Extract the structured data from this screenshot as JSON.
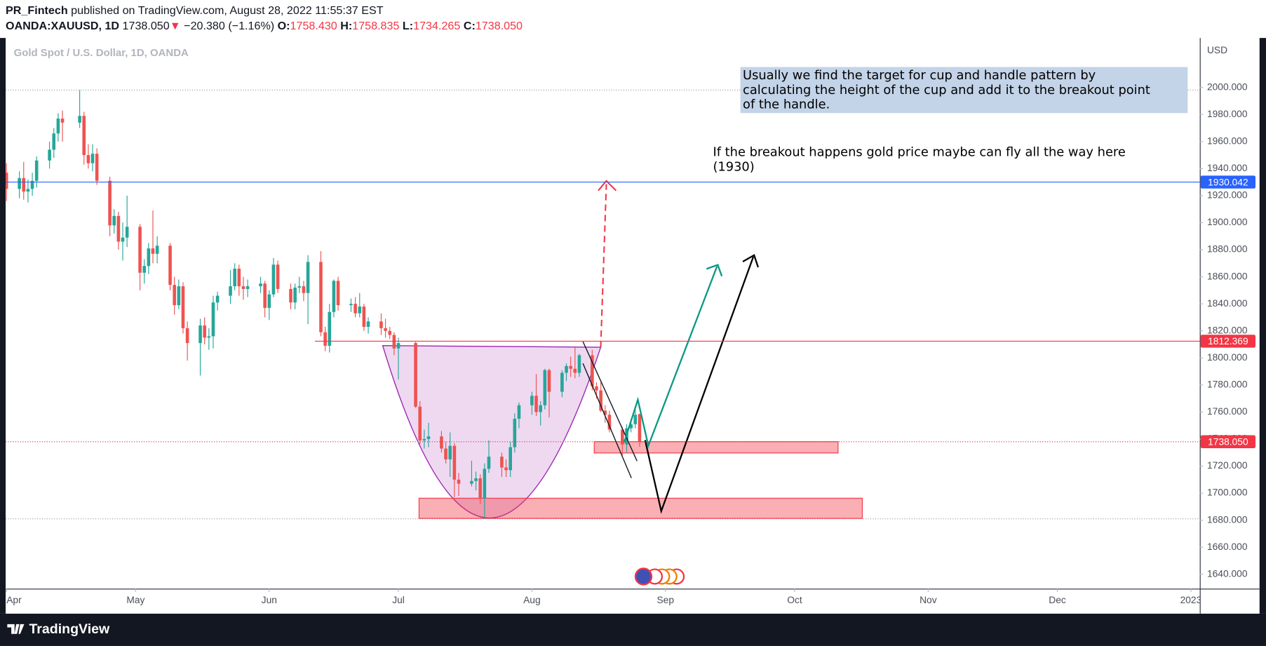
{
  "chart_data": {
    "type": "candlestick",
    "header": {
      "author": "PR_Fintech",
      "published": "published on TradingView.com, August 28, 2022 11:55:37 EST",
      "symbol": "OANDA:XAUUSD, 1D",
      "last": "1738.050",
      "arrow": "▼",
      "change": "−20.380 (−1.16%)",
      "ohlc": [
        [
          "O:",
          "1758.430"
        ],
        [
          "H:",
          "1758.835"
        ],
        [
          "L:",
          "1734.265"
        ],
        [
          "C:",
          "1738.050"
        ]
      ]
    },
    "title": "Gold Spot / U.S. Dollar, 1D, OANDA",
    "currency": "USD",
    "up_color": "#26a69a",
    "down_color": "#ef5350",
    "xlim": [
      "2022-04-01",
      "2023-01-01"
    ],
    "xticks": [
      {
        "value": "2022-04-01",
        "label": "Apr"
      },
      {
        "value": "2022-05-01",
        "label": "May"
      },
      {
        "value": "2022-06-01",
        "label": "Jun"
      },
      {
        "value": "2022-07-01",
        "label": "Jul"
      },
      {
        "value": "2022-08-01",
        "label": "Aug"
      },
      {
        "value": "2022-09-01",
        "label": "Sep"
      },
      {
        "value": "2022-10-01",
        "label": "Oct"
      },
      {
        "value": "2022-11-01",
        "label": "Nov"
      },
      {
        "value": "2022-12-01",
        "label": "Dec"
      },
      {
        "value": "2023-01-01",
        "label": "2023"
      }
    ],
    "ylim": [
      1630,
      2036
    ],
    "yticks": [
      {
        "value": 1640,
        "label": "1640.000"
      },
      {
        "value": 1660,
        "label": "1660.000"
      },
      {
        "value": 1680,
        "label": "1680.000"
      },
      {
        "value": 1700,
        "label": "1700.000"
      },
      {
        "value": 1720,
        "label": "1720.000"
      },
      {
        "value": 1740,
        "label": "1740.000"
      },
      {
        "value": 1760,
        "label": "1760.000"
      },
      {
        "value": 1780,
        "label": "1780.000"
      },
      {
        "value": 1800,
        "label": "1800.000"
      },
      {
        "value": 1820,
        "label": "1820.000"
      },
      {
        "value": 1840,
        "label": "1840.000"
      },
      {
        "value": 1860,
        "label": "1860.000"
      },
      {
        "value": 1880,
        "label": "1880.000"
      },
      {
        "value": 1900,
        "label": "1900.000"
      },
      {
        "value": 1920,
        "label": "1920.000"
      },
      {
        "value": 1940,
        "label": "1940.000"
      },
      {
        "value": 1960,
        "label": "1960.000"
      },
      {
        "value": 1980,
        "label": "1980.000"
      },
      {
        "value": 2000,
        "label": "2000.000"
      }
    ],
    "price_lines": [
      {
        "value": 1930.042,
        "label": "1930.042",
        "color": "#2962ff"
      },
      {
        "value": 1812.369,
        "label": "1812.369",
        "color": "#f23645"
      }
    ],
    "last_label": "1738.050",
    "last_color": "#f23645",
    "annotations": {
      "box": [
        "Usually we find the target for cup and handle pattern by",
        "calculating the height of the cup and add it to the breakout point",
        "of the handle."
      ],
      "note": [
        "If the breakout happens gold price maybe can fly all the way here",
        "(1930)"
      ]
    },
    "footer": "TradingView",
    "candles": [
      [
        "2022-04-01",
        1937,
        1944,
        1916,
        1925
      ],
      [
        "2022-04-04",
        1925,
        1938,
        1918,
        1933
      ],
      [
        "2022-04-05",
        1933,
        1945,
        1917,
        1923
      ],
      [
        "2022-04-06",
        1923,
        1932,
        1915,
        1925
      ],
      [
        "2022-04-07",
        1925,
        1937,
        1920,
        1931
      ],
      [
        "2022-04-08",
        1931,
        1949,
        1926,
        1946
      ],
      [
        "2022-04-11",
        1946,
        1960,
        1940,
        1954
      ],
      [
        "2022-04-12",
        1954,
        1970,
        1948,
        1966
      ],
      [
        "2022-04-13",
        1966,
        1981,
        1960,
        1977
      ],
      [
        "2022-04-14",
        1977,
        1983,
        1960,
        1974
      ],
      [
        "2022-04-18",
        1974,
        1998,
        1970,
        1979
      ],
      [
        "2022-04-19",
        1979,
        1982,
        1943,
        1950
      ],
      [
        "2022-04-20",
        1950,
        1958,
        1940,
        1944
      ],
      [
        "2022-04-21",
        1944,
        1958,
        1938,
        1951
      ],
      [
        "2022-04-22",
        1951,
        1955,
        1928,
        1931
      ],
      [
        "2022-04-25",
        1931,
        1934,
        1890,
        1898
      ],
      [
        "2022-04-26",
        1898,
        1910,
        1892,
        1905
      ],
      [
        "2022-04-27",
        1905,
        1908,
        1880,
        1886
      ],
      [
        "2022-04-28",
        1886,
        1900,
        1872,
        1889
      ],
      [
        "2022-04-29",
        1889,
        1920,
        1882,
        1897
      ],
      [
        "2022-05-02",
        1897,
        1899,
        1850,
        1863
      ],
      [
        "2022-05-03",
        1863,
        1873,
        1855,
        1868
      ],
      [
        "2022-05-04",
        1868,
        1885,
        1862,
        1881
      ],
      [
        "2022-05-05",
        1881,
        1909,
        1870,
        1877
      ],
      [
        "2022-05-06",
        1877,
        1890,
        1870,
        1883
      ],
      [
        "2022-05-09",
        1883,
        1885,
        1850,
        1854
      ],
      [
        "2022-05-10",
        1854,
        1860,
        1832,
        1839
      ],
      [
        "2022-05-11",
        1839,
        1858,
        1836,
        1853
      ],
      [
        "2022-05-12",
        1853,
        1856,
        1818,
        1822
      ],
      [
        "2022-05-13",
        1822,
        1827,
        1798,
        1811
      ],
      [
        "2022-05-16",
        1811,
        1829,
        1787,
        1824
      ],
      [
        "2022-05-17",
        1824,
        1830,
        1810,
        1815
      ],
      [
        "2022-05-18",
        1815,
        1822,
        1806,
        1816
      ],
      [
        "2022-05-19",
        1816,
        1846,
        1807,
        1841
      ],
      [
        "2022-05-20",
        1841,
        1849,
        1835,
        1846
      ],
      [
        "2022-05-23",
        1846,
        1865,
        1840,
        1853
      ],
      [
        "2022-05-24",
        1853,
        1870,
        1850,
        1866
      ],
      [
        "2022-05-25",
        1866,
        1869,
        1846,
        1853
      ],
      [
        "2022-05-26",
        1853,
        1860,
        1843,
        1851
      ],
      [
        "2022-05-27",
        1851,
        1858,
        1845,
        1853
      ],
      [
        "2022-05-30",
        1853,
        1860,
        1848,
        1855
      ],
      [
        "2022-05-31",
        1855,
        1857,
        1830,
        1837
      ],
      [
        "2022-06-01",
        1837,
        1850,
        1828,
        1847
      ],
      [
        "2022-06-02",
        1847,
        1874,
        1845,
        1869
      ],
      [
        "2022-06-03",
        1869,
        1872,
        1848,
        1851
      ],
      [
        "2022-06-06",
        1851,
        1855,
        1836,
        1841
      ],
      [
        "2022-06-07",
        1841,
        1855,
        1836,
        1852
      ],
      [
        "2022-06-08",
        1852,
        1860,
        1848,
        1853
      ],
      [
        "2022-06-09",
        1853,
        1857,
        1842,
        1848
      ],
      [
        "2022-06-10",
        1848,
        1876,
        1825,
        1871
      ],
      [
        "2022-06-13",
        1871,
        1879,
        1816,
        1819
      ],
      [
        "2022-06-14",
        1819,
        1823,
        1805,
        1809
      ],
      [
        "2022-06-15",
        1809,
        1840,
        1804,
        1834
      ],
      [
        "2022-06-16",
        1834,
        1858,
        1830,
        1857
      ],
      [
        "2022-06-17",
        1857,
        1860,
        1835,
        1839
      ],
      [
        "2022-06-20",
        1839,
        1844,
        1834,
        1840
      ],
      [
        "2022-06-21",
        1840,
        1845,
        1830,
        1833
      ],
      [
        "2022-06-22",
        1833,
        1848,
        1830,
        1838
      ],
      [
        "2022-06-23",
        1838,
        1840,
        1820,
        1823
      ],
      [
        "2022-06-24",
        1823,
        1830,
        1818,
        1827
      ],
      [
        "2022-06-27",
        1827,
        1833,
        1817,
        1822
      ],
      [
        "2022-06-28",
        1822,
        1829,
        1815,
        1820
      ],
      [
        "2022-06-29",
        1820,
        1823,
        1814,
        1817
      ],
      [
        "2022-06-30",
        1817,
        1819,
        1802,
        1807
      ],
      [
        "2022-07-01",
        1807,
        1815,
        1784,
        1811
      ],
      [
        "2022-07-05",
        1811,
        1812,
        1763,
        1764
      ],
      [
        "2022-07-06",
        1764,
        1768,
        1736,
        1739
      ],
      [
        "2022-07-07",
        1739,
        1747,
        1733,
        1740
      ],
      [
        "2022-07-08",
        1740,
        1752,
        1734,
        1742
      ],
      [
        "2022-07-11",
        1742,
        1746,
        1730,
        1733
      ],
      [
        "2022-07-12",
        1733,
        1738,
        1722,
        1725
      ],
      [
        "2022-07-13",
        1725,
        1745,
        1712,
        1735
      ],
      [
        "2022-07-14",
        1735,
        1737,
        1697,
        1710
      ],
      [
        "2022-07-15",
        1710,
        1715,
        1698,
        1707
      ],
      [
        "2022-07-18",
        1707,
        1724,
        1705,
        1709
      ],
      [
        "2022-07-19",
        1709,
        1716,
        1702,
        1711
      ],
      [
        "2022-07-20",
        1711,
        1714,
        1692,
        1696
      ],
      [
        "2022-07-21",
        1696,
        1722,
        1681,
        1718
      ],
      [
        "2022-07-22",
        1718,
        1739,
        1715,
        1727
      ],
      [
        "2022-07-25",
        1727,
        1730,
        1712,
        1719
      ],
      [
        "2022-07-26",
        1719,
        1725,
        1712,
        1717
      ],
      [
        "2022-07-27",
        1717,
        1738,
        1712,
        1734
      ],
      [
        "2022-07-28",
        1734,
        1759,
        1730,
        1755
      ],
      [
        "2022-07-29",
        1755,
        1767,
        1748,
        1765
      ],
      [
        "2022-08-01",
        1765,
        1775,
        1758,
        1772
      ],
      [
        "2022-08-02",
        1772,
        1788,
        1757,
        1760
      ],
      [
        "2022-08-03",
        1760,
        1768,
        1750,
        1765
      ],
      [
        "2022-08-04",
        1765,
        1792,
        1762,
        1791
      ],
      [
        "2022-08-05",
        1791,
        1792,
        1756,
        1775
      ],
      [
        "2022-08-08",
        1775,
        1791,
        1771,
        1789
      ],
      [
        "2022-08-09",
        1789,
        1796,
        1783,
        1794
      ],
      [
        "2022-08-10",
        1794,
        1801,
        1786,
        1792
      ],
      [
        "2022-08-11",
        1792,
        1808,
        1785,
        1789
      ],
      [
        "2022-08-12",
        1789,
        1803,
        1786,
        1802
      ],
      [
        "2022-08-15",
        1802,
        1806,
        1776,
        1779
      ],
      [
        "2022-08-16",
        1779,
        1782,
        1770,
        1776
      ],
      [
        "2022-08-17",
        1776,
        1782,
        1760,
        1761
      ],
      [
        "2022-08-18",
        1761,
        1765,
        1752,
        1758
      ],
      [
        "2022-08-19",
        1758,
        1761,
        1745,
        1747
      ],
      [
        "2022-08-22",
        1747,
        1749,
        1728,
        1736
      ],
      [
        "2022-08-23",
        1736,
        1751,
        1730,
        1748
      ],
      [
        "2022-08-24",
        1748,
        1755,
        1745,
        1751
      ],
      [
        "2022-08-25",
        1751,
        1764,
        1748,
        1758
      ],
      [
        "2022-08-26",
        1758.43,
        1758.835,
        1734.265,
        1738.05
      ]
    ]
  }
}
